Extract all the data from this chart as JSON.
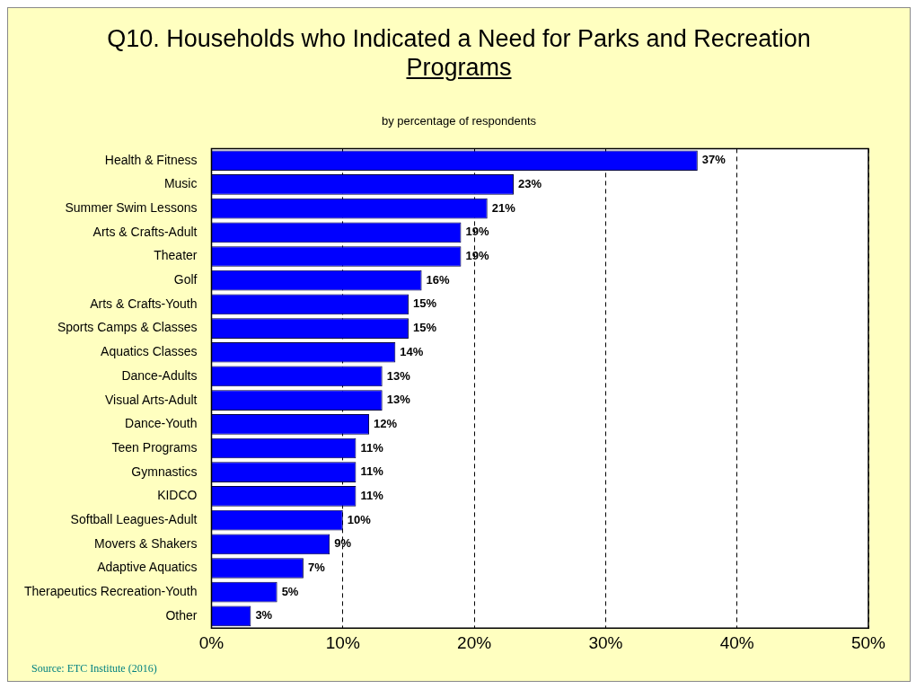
{
  "chart_data": {
    "type": "bar",
    "orientation": "horizontal",
    "title": "Q10. Households who Indicated a Need for Parks and Recreation Programs",
    "subtitle": "by percentage of respondents",
    "categories": [
      "Health & Fitness",
      "Music",
      "Summer Swim Lessons",
      "Arts & Crafts-Adult",
      "Theater",
      "Golf",
      "Arts & Crafts-Youth",
      "Sports Camps & Classes",
      "Aquatics Classes",
      "Dance-Adults",
      "Visual Arts-Adult",
      "Dance-Youth",
      "Teen Programs",
      "Gymnastics",
      "KIDCO",
      "Softball Leagues-Adult",
      "Movers & Shakers",
      "Adaptive Aquatics",
      "Therapeutics Recreation-Youth",
      "Other"
    ],
    "values": [
      37,
      23,
      21,
      19,
      19,
      16,
      15,
      15,
      14,
      13,
      13,
      12,
      11,
      11,
      11,
      10,
      9,
      7,
      5,
      3
    ],
    "value_labels": [
      "37%",
      "23%",
      "21%",
      "19%",
      "19%",
      "16%",
      "15%",
      "15%",
      "14%",
      "13%",
      "13%",
      "12%",
      "11%",
      "11%",
      "11%",
      "10%",
      "9%",
      "7%",
      "5%",
      "3%"
    ],
    "color": "#0000ff",
    "xlim": [
      0,
      50
    ],
    "xticks": [
      {
        "value": 0,
        "label": "0%"
      },
      {
        "value": 10,
        "label": "10%"
      },
      {
        "value": 20,
        "label": "20%"
      },
      {
        "value": 30,
        "label": "30%"
      },
      {
        "value": 40,
        "label": "40%"
      },
      {
        "value": 50,
        "label": "50%"
      }
    ],
    "grid": "x",
    "line_style": "dashed",
    "legend": false,
    "annotations": [
      "Source: ETC Institute (2016)"
    ]
  }
}
